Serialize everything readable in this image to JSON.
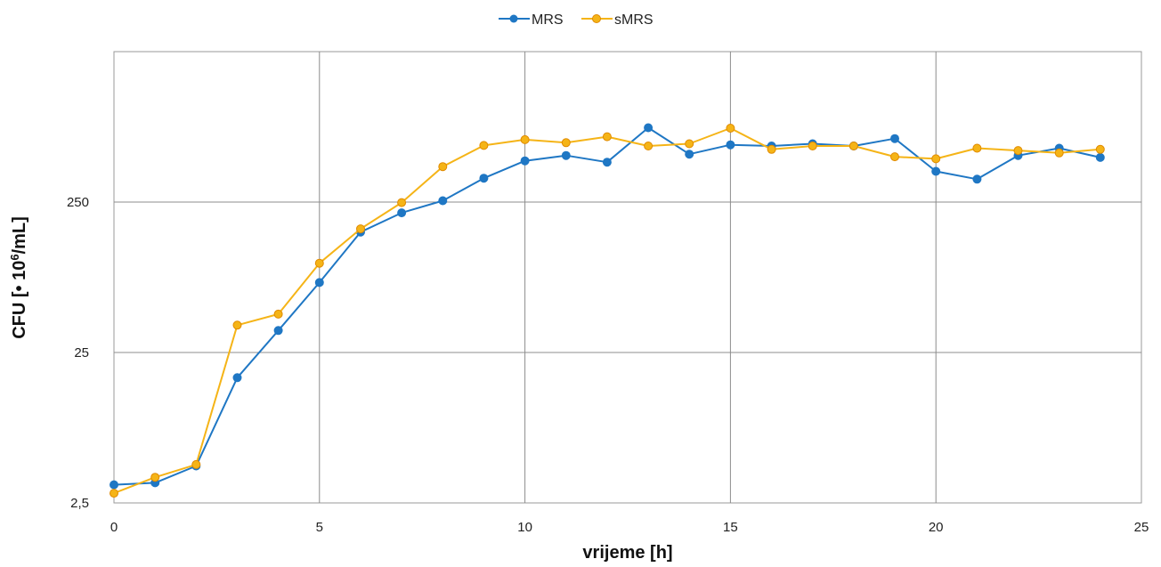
{
  "chart_data": {
    "type": "line",
    "title": "",
    "xlabel": "vrijeme [h]",
    "ylabel_main": "CFU [• 10",
    "ylabel_sup": "6",
    "ylabel_unit": "/mL]",
    "x_scale": "linear",
    "y_scale": "log",
    "xlim": [
      0,
      25
    ],
    "ylim": [
      2.5,
      2500
    ],
    "x_ticks": [
      0,
      5,
      10,
      15,
      20,
      25
    ],
    "x_tick_labels": [
      "0",
      "5",
      "10",
      "15",
      "20",
      "25"
    ],
    "y_ticks": [
      2.5,
      25,
      250
    ],
    "y_tick_labels": [
      "2,5",
      "25",
      "250"
    ],
    "grid": true,
    "legend_position": "top",
    "x": [
      0,
      1,
      2,
      3,
      4,
      5,
      6,
      7,
      8,
      9,
      10,
      11,
      12,
      13,
      14,
      15,
      16,
      17,
      18,
      19,
      20,
      21,
      22,
      23,
      24
    ],
    "series": [
      {
        "name": "MRS",
        "color": "#1f77c4",
        "values": [
          3.3,
          3.4,
          4.4,
          17,
          35,
          73,
          158,
          212,
          255,
          360,
          470,
          510,
          460,
          780,
          520,
          600,
          590,
          610,
          590,
          660,
          400,
          355,
          510,
          570,
          495
        ]
      },
      {
        "name": "sMRS",
        "color": "#f5b417",
        "values": [
          2.9,
          3.7,
          4.5,
          38,
          45,
          98,
          166,
          248,
          430,
          595,
          650,
          620,
          680,
          590,
          610,
          775,
          560,
          590,
          590,
          500,
          485,
          570,
          550,
          530,
          560
        ]
      }
    ]
  }
}
